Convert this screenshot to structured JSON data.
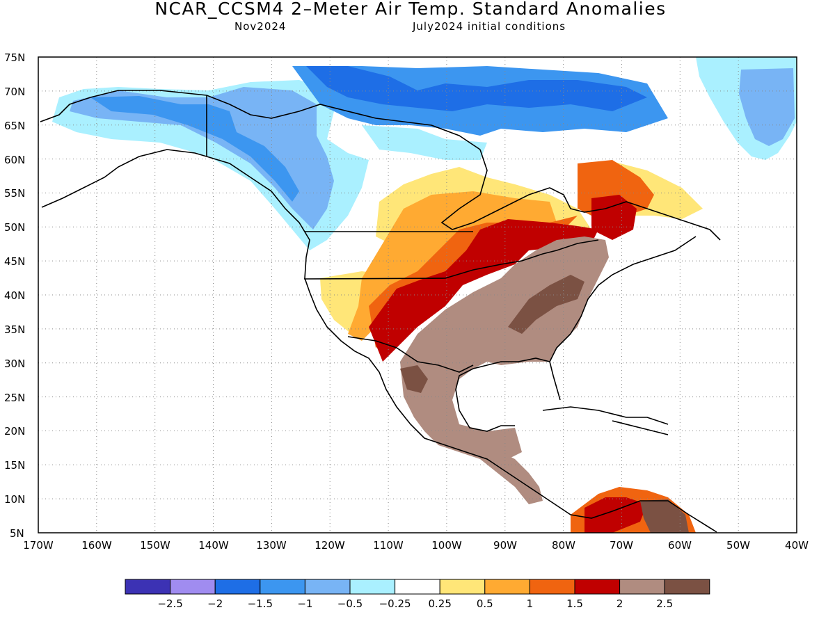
{
  "header": {
    "title": "NCAR_CCSM4 2–Meter Air Temp. Standard Anomalies",
    "valid_month": "Nov2024",
    "init": "July2024 initial conditions"
  },
  "map": {
    "lat_labels": [
      "75N",
      "70N",
      "65N",
      "60N",
      "55N",
      "50N",
      "45N",
      "40N",
      "35N",
      "30N",
      "25N",
      "20N",
      "15N",
      "10N",
      "5N"
    ],
    "lon_labels": [
      "170W",
      "160W",
      "150W",
      "140W",
      "130W",
      "120W",
      "110W",
      "100W",
      "90W",
      "80W",
      "70W",
      "60W",
      "50W",
      "40W"
    ],
    "lat_range": [
      5,
      75
    ],
    "lon_range": [
      -170,
      -40
    ]
  },
  "colorbar": {
    "colors": [
      "#3c32b4",
      "#a08cf0",
      "#1e6ee6",
      "#3c96f0",
      "#78b4f5",
      "#aaf0ff",
      "#ffffff",
      "#ffe678",
      "#ffaa32",
      "#f06410",
      "#c00000",
      "#b08c80",
      "#7b5143"
    ],
    "labels": [
      "−2.5",
      "−2",
      "−1.5",
      "−1",
      "−0.5",
      "−0.25",
      "0.25",
      "0.5",
      "1",
      "1.5",
      "2",
      "2.5"
    ]
  }
}
